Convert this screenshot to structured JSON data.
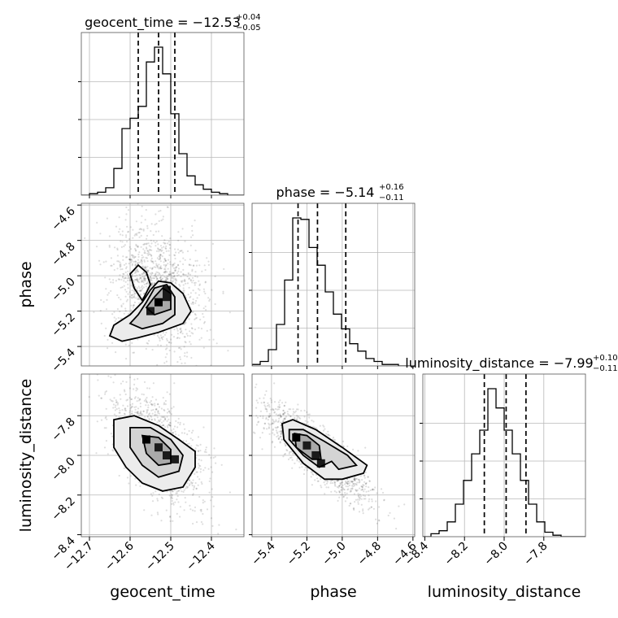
{
  "chart_data": {
    "type": "corner",
    "params": [
      "geocent_time",
      "phase",
      "luminosity_distance"
    ],
    "axis_labels": [
      "geocent_time",
      "phase",
      "luminosity_distance"
    ],
    "ranges": [
      [
        -12.72,
        -12.32
      ],
      [
        -5.51,
        -4.59
      ],
      [
        -8.41,
        -7.59
      ]
    ],
    "ticks": [
      [
        -12.7,
        -12.6,
        -12.5,
        -12.4
      ],
      [
        -5.4,
        -5.2,
        -5.0,
        -4.8,
        -4.6
      ],
      [
        -8.4,
        -8.2,
        -8.0,
        -7.8
      ]
    ],
    "tick_labels": [
      [
        "−12.7",
        "−12.6",
        "−12.5",
        "−12.4"
      ],
      [
        "−5.4",
        "−5.2",
        "−5.0",
        "−4.8",
        "−4.6"
      ],
      [
        "−8.4",
        "−8.2",
        "−8.0",
        "−7.8"
      ]
    ],
    "titles": [
      {
        "name": "geocent_time",
        "median": "−12.53",
        "plus": "+0.04",
        "minus": "−0.05"
      },
      {
        "name": "phase",
        "median": "−5.14",
        "plus": "+0.16",
        "minus": "−0.11"
      },
      {
        "name": "luminosity_distance",
        "median": "−7.99",
        "plus": "+0.10",
        "minus": "−0.11"
      }
    ],
    "quantiles": [
      [
        -12.58,
        -12.53,
        -12.49
      ],
      [
        -5.25,
        -5.14,
        -4.98
      ],
      [
        -8.1,
        -7.99,
        -7.89
      ]
    ],
    "histograms": [
      {
        "edges_start": -12.72,
        "bin_width": 0.02,
        "counts": [
          0,
          1,
          2,
          5,
          18,
          45,
          52,
          60,
          90,
          100,
          82,
          55,
          28,
          13,
          7,
          4,
          2,
          1,
          0,
          0
        ]
      },
      {
        "edges_start": -5.51,
        "bin_width": 0.046,
        "counts": [
          1,
          3,
          11,
          28,
          58,
          100,
          99,
          80,
          68,
          50,
          35,
          25,
          15,
          10,
          5,
          3,
          1,
          1,
          0,
          0
        ]
      },
      {
        "edges_start": -8.41,
        "bin_width": 0.041,
        "counts": [
          0,
          2,
          4,
          10,
          22,
          38,
          56,
          72,
          100,
          87,
          72,
          56,
          38,
          22,
          10,
          3,
          1,
          0,
          0,
          0
        ]
      }
    ],
    "pairs": [
      {
        "x": 0,
        "y": 1,
        "cx": -12.535,
        "cy": -5.08,
        "sx": 0.045,
        "sy": 0.14,
        "rho": -0.2,
        "hot": [
          [
            -12.53,
            -5.15
          ],
          [
            -12.51,
            -5.12
          ],
          [
            -12.55,
            -5.2
          ],
          [
            -12.51,
            -5.08
          ]
        ],
        "contours": [
          [
            [
              -12.62,
              -5.37
            ],
            [
              -12.58,
              -5.35
            ],
            [
              -12.53,
              -5.32
            ],
            [
              -12.47,
              -5.27
            ],
            [
              -12.45,
              -5.2
            ],
            [
              -12.47,
              -5.1
            ],
            [
              -12.5,
              -5.04
            ],
            [
              -12.53,
              -5.03
            ],
            [
              -12.55,
              -5.08
            ],
            [
              -12.57,
              -5.15
            ],
            [
              -12.6,
              -5.22
            ],
            [
              -12.64,
              -5.28
            ],
            [
              -12.65,
              -5.34
            ]
          ],
          [
            [
              -12.57,
              -5.3
            ],
            [
              -12.52,
              -5.27
            ],
            [
              -12.49,
              -5.22
            ],
            [
              -12.49,
              -5.12
            ],
            [
              -12.51,
              -5.05
            ],
            [
              -12.54,
              -5.07
            ],
            [
              -12.56,
              -5.15
            ],
            [
              -12.58,
              -5.22
            ],
            [
              -12.6,
              -5.27
            ]
          ],
          [
            [
              -12.54,
              -5.22
            ],
            [
              -12.5,
              -5.19
            ],
            [
              -12.5,
              -5.1
            ],
            [
              -12.52,
              -5.07
            ],
            [
              -12.54,
              -5.12
            ],
            [
              -12.56,
              -5.18
            ]
          ],
          [
            [
              -12.57,
              -5.14
            ],
            [
              -12.55,
              -5.05
            ],
            [
              -12.56,
              -4.98
            ],
            [
              -12.58,
              -4.94
            ],
            [
              -12.6,
              -4.99
            ],
            [
              -12.59,
              -5.07
            ]
          ]
        ]
      },
      {
        "x": 0,
        "y": 2,
        "cx": -12.53,
        "cy": -7.97,
        "sx": 0.045,
        "sy": 0.11,
        "rho": -0.55,
        "hot": [
          [
            -12.56,
            -7.92
          ],
          [
            -12.53,
            -7.96
          ],
          [
            -12.51,
            -8.0
          ],
          [
            -12.49,
            -8.02
          ]
        ],
        "contours": [
          [
            [
              -12.64,
              -7.82
            ],
            [
              -12.59,
              -7.8
            ],
            [
              -12.53,
              -7.85
            ],
            [
              -12.48,
              -7.92
            ],
            [
              -12.44,
              -7.98
            ],
            [
              -12.44,
              -8.06
            ],
            [
              -12.47,
              -8.16
            ],
            [
              -12.52,
              -8.18
            ],
            [
              -12.57,
              -8.14
            ],
            [
              -12.61,
              -8.06
            ],
            [
              -12.64,
              -7.96
            ]
          ],
          [
            [
              -12.6,
              -7.86
            ],
            [
              -12.55,
              -7.86
            ],
            [
              -12.5,
              -7.92
            ],
            [
              -12.47,
              -8.0
            ],
            [
              -12.48,
              -8.08
            ],
            [
              -12.53,
              -8.11
            ],
            [
              -12.57,
              -8.05
            ],
            [
              -12.6,
              -7.96
            ]
          ],
          [
            [
              -12.57,
              -7.9
            ],
            [
              -12.53,
              -7.91
            ],
            [
              -12.5,
              -7.97
            ],
            [
              -12.5,
              -8.04
            ],
            [
              -12.53,
              -8.05
            ],
            [
              -12.56,
              -7.99
            ]
          ]
        ]
      },
      {
        "x": 1,
        "y": 2,
        "cx": -5.14,
        "cy": -7.99,
        "sx": 0.13,
        "sy": 0.1,
        "rho": -0.85,
        "hot": [
          [
            -5.26,
            -7.91
          ],
          [
            -5.2,
            -7.95
          ],
          [
            -5.15,
            -8.0
          ],
          [
            -5.12,
            -8.04
          ]
        ],
        "contours": [
          [
            [
              -5.34,
              -7.84
            ],
            [
              -5.28,
              -7.82
            ],
            [
              -5.15,
              -7.87
            ],
            [
              -5.0,
              -7.96
            ],
            [
              -4.86,
              -8.05
            ],
            [
              -4.88,
              -8.09
            ],
            [
              -5.0,
              -8.12
            ],
            [
              -5.1,
              -8.12
            ],
            [
              -5.22,
              -8.04
            ],
            [
              -5.33,
              -7.92
            ]
          ],
          [
            [
              -5.3,
              -7.87
            ],
            [
              -5.22,
              -7.87
            ],
            [
              -5.1,
              -7.93
            ],
            [
              -4.97,
              -8.0
            ],
            [
              -4.92,
              -8.05
            ],
            [
              -5.02,
              -8.07
            ],
            [
              -5.06,
              -8.03
            ],
            [
              -5.13,
              -8.06
            ],
            [
              -5.22,
              -8.0
            ],
            [
              -5.3,
              -7.92
            ]
          ],
          [
            [
              -5.27,
              -7.89
            ],
            [
              -5.2,
              -7.9
            ],
            [
              -5.13,
              -7.95
            ],
            [
              -5.12,
              -8.02
            ],
            [
              -5.17,
              -8.02
            ],
            [
              -5.26,
              -7.96
            ]
          ]
        ]
      }
    ]
  }
}
